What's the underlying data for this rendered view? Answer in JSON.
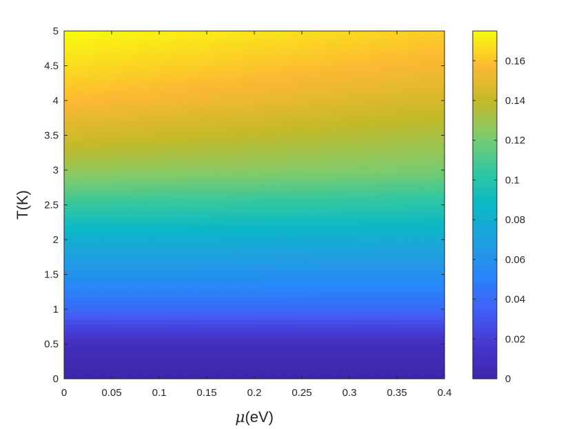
{
  "chart_data": {
    "type": "heatmap",
    "title": "",
    "xlabel_symbol": "μ",
    "xlabel_unit": "(eV)",
    "ylabel": "T(K)",
    "xlim": [
      0,
      0.4
    ],
    "ylim": [
      0,
      5
    ],
    "x_ticks": [
      "0",
      "0.05",
      "0.1",
      "0.15",
      "0.2",
      "0.25",
      "0.3",
      "0.35",
      "0.4"
    ],
    "y_ticks": [
      "0",
      "0.5",
      "1",
      "1.5",
      "2",
      "2.5",
      "3",
      "3.5",
      "4",
      "4.5",
      "5"
    ],
    "colorbar": {
      "range": [
        0,
        0.175
      ],
      "ticks": [
        "0",
        "0.02",
        "0.04",
        "0.06",
        "0.08",
        "0.1",
        "0.12",
        "0.14",
        "0.16"
      ],
      "colormap": "parula"
    },
    "x": [
      0,
      0.1,
      0.2,
      0.3,
      0.4
    ],
    "y": [
      0,
      0.5,
      1,
      1.5,
      2,
      2.5,
      3,
      3.5,
      4,
      4.5,
      5
    ],
    "z": [
      [
        0.0,
        0.0,
        0.0,
        0.0,
        0.0
      ],
      [
        0.008,
        0.008,
        0.008,
        0.008,
        0.008
      ],
      [
        0.04,
        0.04,
        0.04,
        0.04,
        0.04
      ],
      [
        0.06,
        0.06,
        0.06,
        0.059,
        0.059
      ],
      [
        0.08,
        0.08,
        0.079,
        0.079,
        0.078
      ],
      [
        0.105,
        0.104,
        0.103,
        0.102,
        0.1
      ],
      [
        0.128,
        0.126,
        0.125,
        0.123,
        0.121
      ],
      [
        0.145,
        0.142,
        0.139,
        0.136,
        0.133
      ],
      [
        0.158,
        0.155,
        0.152,
        0.148,
        0.145
      ],
      [
        0.167,
        0.164,
        0.161,
        0.158,
        0.155
      ],
      [
        0.175,
        0.172,
        0.169,
        0.166,
        0.163
      ]
    ]
  }
}
